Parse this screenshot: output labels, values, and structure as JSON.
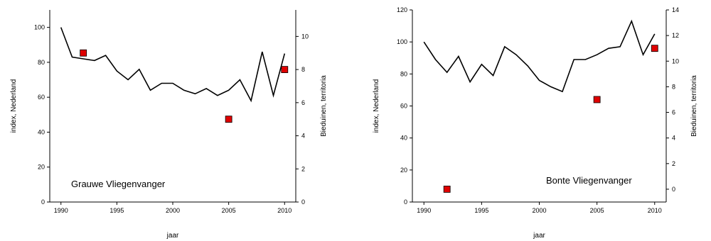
{
  "chart_data": [
    {
      "type": "line",
      "title": "Grauwe Vliegenvanger",
      "xlabel": "jaar",
      "ylabel": "index, Nederland",
      "y2label": "Bieduinen, territoria",
      "xlim": [
        1989,
        2011
      ],
      "ylim": [
        0,
        110
      ],
      "y2lim": [
        0,
        11.6
      ],
      "xticks": [
        1990,
        1995,
        2000,
        2005,
        2010
      ],
      "yticks": [
        0,
        20,
        40,
        60,
        80,
        100
      ],
      "y2ticks": [
        0,
        2,
        4,
        6,
        8,
        10
      ],
      "grid": false,
      "series": [
        {
          "axis": "left",
          "style": "line",
          "color": "#000000",
          "x": [
            1990,
            1991,
            1992,
            1993,
            1994,
            1995,
            1996,
            1997,
            1998,
            1999,
            2000,
            2001,
            2002,
            2003,
            2004,
            2005,
            2006,
            2007,
            2008,
            2009,
            2010
          ],
          "y": [
            100,
            83,
            82,
            81,
            84,
            75,
            70,
            76,
            64,
            68,
            68,
            64,
            62,
            65,
            61,
            64,
            70,
            58,
            86,
            61,
            85
          ]
        },
        {
          "axis": "right",
          "style": "marker",
          "marker": "square",
          "color": "#e00000",
          "x": [
            1992,
            2005,
            2010
          ],
          "y": [
            9,
            5,
            8
          ]
        }
      ]
    },
    {
      "type": "line",
      "title": "Bonte Vliegenvanger",
      "xlabel": "jaar",
      "ylabel": "index, Nederland",
      "y2label": "Bieduinen, territoria",
      "xlim": [
        1989,
        2011
      ],
      "ylim": [
        0,
        120
      ],
      "y2lim": [
        -1,
        14
      ],
      "xticks": [
        1990,
        1995,
        2000,
        2005,
        2010
      ],
      "yticks": [
        0,
        20,
        40,
        60,
        80,
        100,
        120
      ],
      "y2ticks": [
        0,
        2,
        4,
        6,
        8,
        10,
        12,
        14
      ],
      "grid": false,
      "series": [
        {
          "axis": "left",
          "style": "line",
          "color": "#000000",
          "x": [
            1990,
            1991,
            1992,
            1993,
            1994,
            1995,
            1996,
            1997,
            1998,
            1999,
            2000,
            2001,
            2002,
            2003,
            2004,
            2005,
            2006,
            2007,
            2008,
            2009,
            2010
          ],
          "y": [
            100,
            89,
            81,
            91,
            75,
            86,
            79,
            97,
            92,
            85,
            76,
            72,
            69,
            89,
            89,
            92,
            96,
            97,
            113,
            92,
            105
          ]
        },
        {
          "axis": "right",
          "style": "marker",
          "marker": "square",
          "color": "#e00000",
          "x": [
            1992,
            2005,
            2010
          ],
          "y": [
            0,
            7,
            11
          ]
        }
      ]
    }
  ]
}
